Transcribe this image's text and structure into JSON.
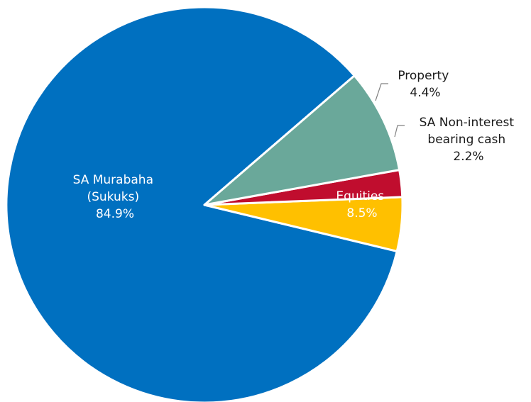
{
  "chart_data": {
    "type": "pie",
    "slices": [
      {
        "key": "murabaha",
        "label_lines": [
          "SA Murabaha",
          "(Sukuks)"
        ],
        "value_label": "84.9%",
        "value": 84.9,
        "color": "#0070c0"
      },
      {
        "key": "property",
        "label_lines": [
          "Property"
        ],
        "value_label": "4.4%",
        "value": 4.4,
        "color": "#ffc000"
      },
      {
        "key": "cash",
        "label_lines": [
          "SA Non-interest",
          "bearing cash"
        ],
        "value_label": "2.2%",
        "value": 2.2,
        "color": "#c00d2e"
      },
      {
        "key": "equities",
        "label_lines": [
          "Equities"
        ],
        "value_label": "8.5%",
        "value": 8.5,
        "color": "#6aa89a"
      }
    ]
  }
}
